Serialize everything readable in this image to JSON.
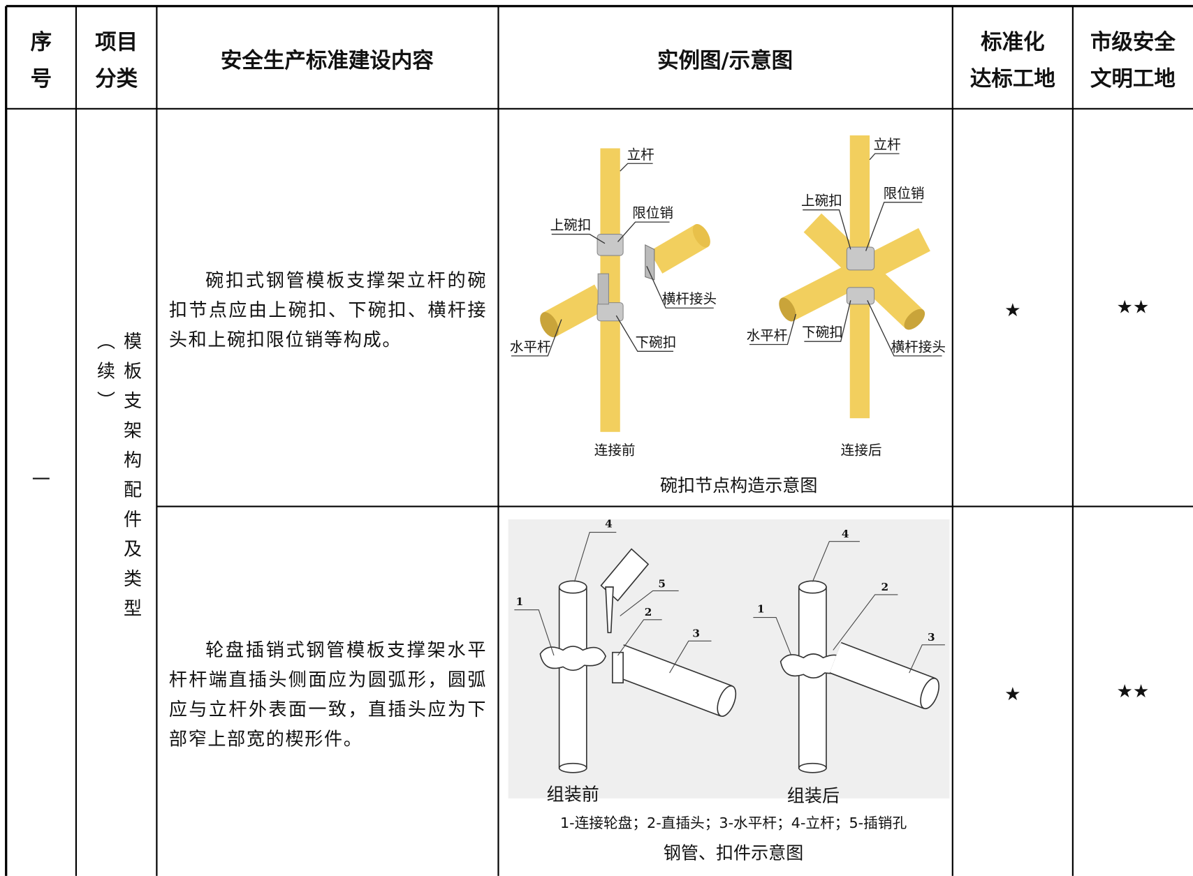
{
  "table": {
    "header": [
      [
        "序",
        "号"
      ],
      [
        "项目",
        "分类"
      ],
      [
        "安全生产标准建设内容"
      ],
      [
        "实例图/示意图"
      ],
      [
        "标准化",
        "达标工地"
      ],
      [
        "市级安全",
        "文明工地"
      ]
    ],
    "index": "一",
    "category": "模板支架构配件及类型（续）",
    "rows": [
      {
        "content": "碗扣式钢管模板支撑架立杆的碗扣节点应由上碗扣、下碗扣、横杆接头和上碗扣限位销等构成。",
        "figure": {
          "before": {
            "labels": [
              "立杆",
              "限位销",
              "上碗扣",
              "横杆接头",
              "水平杆",
              "下碗扣"
            ],
            "caption": "连接前"
          },
          "after": {
            "labels": [
              "立杆",
              "限位销",
              "上碗扣",
              "水平杆",
              "下碗扣",
              "横杆接头"
            ],
            "caption": "连接后"
          },
          "title": "碗扣节点构造示意图"
        },
        "standard": "★",
        "city": "★★"
      },
      {
        "content": "轮盘插销式钢管模板支撑架水平杆杆端直插头侧面应为圆弧形，圆弧应与立杆外表面一致，直插头应为下部窄上部宽的楔形件。",
        "figure": {
          "before": {
            "labels": [
              "4",
              "5",
              "1",
              "2",
              "3"
            ],
            "caption": "组装前"
          },
          "after": {
            "labels": [
              "4",
              "2",
              "1",
              "3"
            ],
            "caption": "组装后"
          },
          "legend": "1-连接轮盘；2-直插头；3-水平杆；4-立杆；5-插销孔",
          "title": "钢管、扣件示意图"
        },
        "standard": "★",
        "city": "★★"
      }
    ]
  }
}
